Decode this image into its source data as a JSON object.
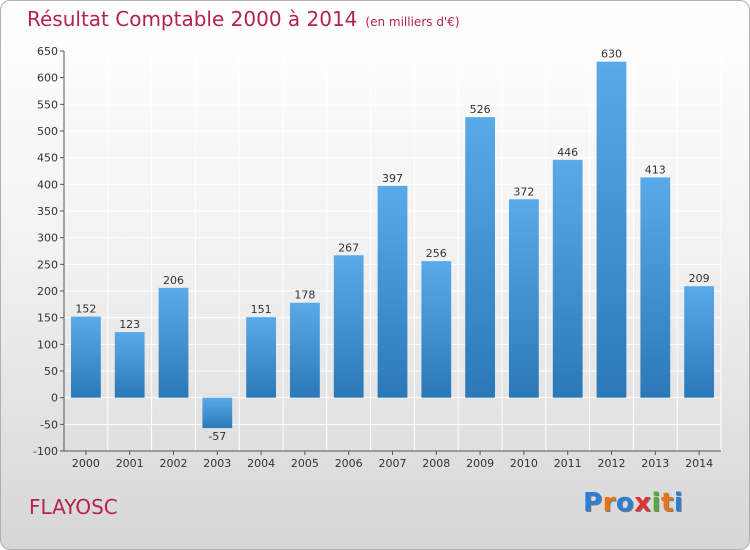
{
  "title": "Résultat Comptable 2000 à 2014",
  "subtitle": "(en milliers d'€)",
  "city": "FLAYOSC",
  "logo": {
    "text": "Proxiti",
    "letters": [
      "P",
      "r",
      "o",
      "x",
      "i",
      "t",
      "i"
    ],
    "colors": [
      "#2a7fd4",
      "#e8731a",
      "#2a7fd4",
      "#e03030",
      "#5aa83a",
      "#e8731a",
      "#2a7fd4"
    ]
  },
  "chart_data": {
    "type": "bar",
    "title": "Résultat Comptable 2000 à 2014",
    "subtitle": "(en milliers d'€)",
    "categories": [
      "2000",
      "2001",
      "2002",
      "2003",
      "2004",
      "2005",
      "2006",
      "2007",
      "2008",
      "2009",
      "2010",
      "2011",
      "2012",
      "2013",
      "2014"
    ],
    "values": [
      152,
      123,
      206,
      -57,
      151,
      178,
      267,
      397,
      256,
      526,
      372,
      446,
      630,
      413,
      209
    ],
    "ylim": [
      -100,
      650
    ],
    "yticks": [
      -100,
      -50,
      0,
      50,
      100,
      150,
      200,
      250,
      300,
      350,
      400,
      450,
      500,
      550,
      600,
      650
    ],
    "grid": true,
    "bar_color_light": "#5aaaea",
    "bar_color_dark": "#2a78b8",
    "grid_color": "#ffffff"
  }
}
